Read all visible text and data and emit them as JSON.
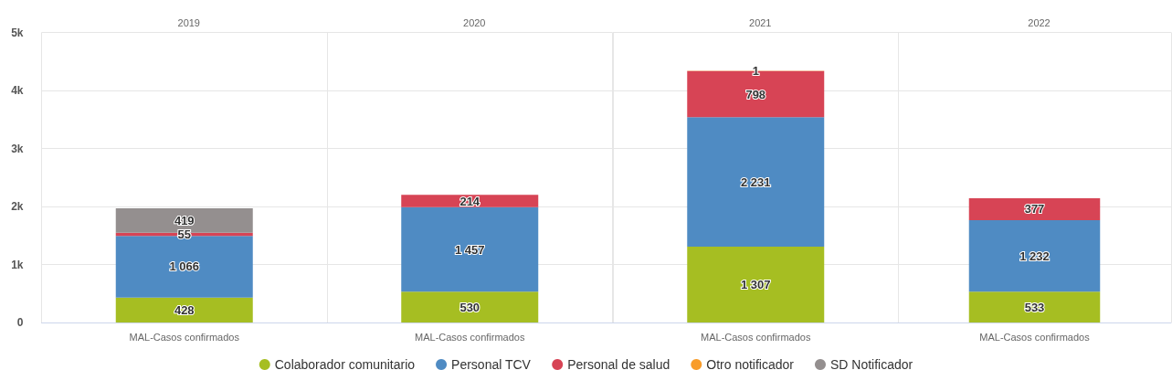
{
  "chart_data": [
    {
      "type": "bar",
      "title": "2019",
      "categories": [
        "MAL-Casos confirmados"
      ],
      "stacked": true,
      "ylim": [
        0,
        5000
      ],
      "yticks": [
        0,
        {
          "value": 1000,
          "label": "1k"
        },
        {
          "value": 2000,
          "label": "2k"
        },
        {
          "value": 3000,
          "label": "3k"
        },
        {
          "value": 4000,
          "label": "4k"
        },
        {
          "value": 5000,
          "label": "5k"
        }
      ],
      "grid": true,
      "legend": "bottom",
      "series": [
        {
          "name": "Colaborador comunitario",
          "color": "#a6be22",
          "values": [
            428
          ],
          "value_labels": [
            "428"
          ]
        },
        {
          "name": "Personal TCV",
          "color": "#4f8bc3",
          "values": [
            1066
          ],
          "value_labels": [
            "1 066"
          ]
        },
        {
          "name": "Personal de salud",
          "color": "#d74455",
          "values": [
            55
          ],
          "value_labels": [
            "55"
          ]
        },
        {
          "name": "Otro notificador",
          "color": "#f89c2a",
          "values": [
            null
          ],
          "value_labels": [
            null
          ]
        },
        {
          "name": "SD Notificador",
          "color": "#948f8f",
          "values": [
            419
          ],
          "value_labels": [
            "419"
          ]
        }
      ]
    },
    {
      "type": "bar",
      "title": "2020",
      "categories": [
        "MAL-Casos confirmados"
      ],
      "stacked": true,
      "ylim": [
        0,
        5000
      ],
      "yticks": [
        {
          "value": 0,
          "label": null
        },
        {
          "value": 1000,
          "label": null
        },
        {
          "value": 2000,
          "label": null
        },
        {
          "value": 3000,
          "label": null
        },
        {
          "value": 4000,
          "label": null
        },
        {
          "value": 5000,
          "label": null
        }
      ],
      "grid": true,
      "tick_labels": "x",
      "series": [
        {
          "color": "#a6be22",
          "values": [
            530
          ],
          "value_labels": [
            "530"
          ]
        },
        {
          "color": "#4f8bc3",
          "values": [
            1457
          ],
          "value_labels": [
            "1 457"
          ]
        },
        {
          "color": "#d74455",
          "values": [
            214
          ],
          "value_labels": [
            "214"
          ]
        }
      ]
    },
    {
      "type": "bar",
      "title": "2021",
      "categories": [
        "MAL-Casos confirmados"
      ],
      "stacked": true,
      "ylim": [
        0,
        5000
      ],
      "yticks": [
        {
          "value": 0,
          "label": null
        },
        {
          "value": 1000,
          "label": null
        },
        {
          "value": 2000,
          "label": null
        },
        {
          "value": 3000,
          "label": null
        },
        {
          "value": 4000,
          "label": null
        },
        {
          "value": 5000,
          "label": null
        }
      ],
      "grid": true,
      "tick_labels": "x",
      "series": [
        {
          "color": "#a6be22",
          "values": [
            1307
          ],
          "value_labels": [
            "1 307"
          ]
        },
        {
          "color": "#4f8bc3",
          "values": [
            2231
          ],
          "value_labels": [
            "2 231"
          ]
        },
        {
          "color": "#d74455",
          "values": [
            798
          ],
          "value_labels": [
            "798"
          ]
        },
        {
          "color": "#f89c2a",
          "values": [
            1
          ],
          "value_labels": [
            "1"
          ]
        }
      ]
    },
    {
      "type": "bar",
      "title": "2022",
      "categories": [
        "MAL-Casos confirmados"
      ],
      "stacked": true,
      "ylim": [
        0,
        5000
      ],
      "yticks": [
        {
          "value": 0,
          "label": null
        },
        {
          "value": 1000,
          "label": null
        },
        {
          "value": 2000,
          "label": null
        },
        {
          "value": 3000,
          "label": null
        },
        {
          "value": 4000,
          "label": null
        },
        {
          "value": 5000,
          "label": null
        }
      ],
      "grid": true,
      "tick_labels": "x",
      "series": [
        {
          "color": "#a6be22",
          "values": [
            533
          ],
          "value_labels": [
            "533"
          ]
        },
        {
          "color": "#4f8bc3",
          "values": [
            1232
          ],
          "value_labels": [
            "1 232"
          ]
        },
        {
          "color": "#d74455",
          "values": [
            377
          ],
          "value_labels": [
            "377"
          ]
        }
      ]
    }
  ]
}
